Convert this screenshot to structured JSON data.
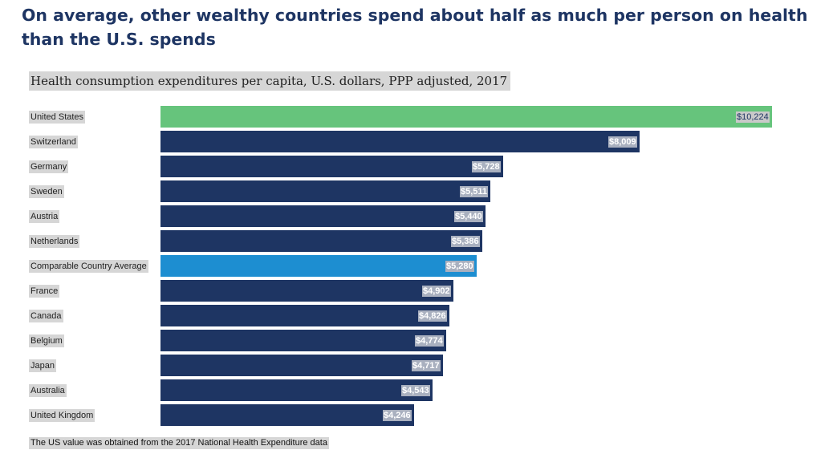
{
  "title": "On average, other wealthy countries spend about half as much per person on health than the U.S. spends",
  "note": "The US value was obtained from the 2017 National Health Expenditure data",
  "colors": {
    "us": "#66c47c",
    "country": "#1e3563",
    "average": "#1d8ed1"
  },
  "chart_data": {
    "type": "bar",
    "orientation": "horizontal",
    "title": "Health consumption expenditures per capita, U.S. dollars, PPP adjusted, 2017",
    "xlabel": "",
    "ylabel": "",
    "xlim": [
      0,
      10224
    ],
    "grid": false,
    "categories": [
      "United States",
      "Switzerland",
      "Germany",
      "Sweden",
      "Austria",
      "Netherlands",
      "Comparable Country Average",
      "France",
      "Canada",
      "Belgium",
      "Japan",
      "Australia",
      "United Kingdom"
    ],
    "values": [
      10224,
      8009,
      5728,
      5511,
      5440,
      5386,
      5280,
      4902,
      4826,
      4774,
      4717,
      4543,
      4246
    ],
    "labels": [
      "$10,224",
      "$8,009",
      "$5,728",
      "$5,511",
      "$5,440",
      "$5,386",
      "$5,280",
      "$4,902",
      "$4,826",
      "$4,774",
      "$4,717",
      "$4,543",
      "$4,246"
    ],
    "highlight": {
      "United States": "us",
      "Comparable Country Average": "average"
    }
  }
}
